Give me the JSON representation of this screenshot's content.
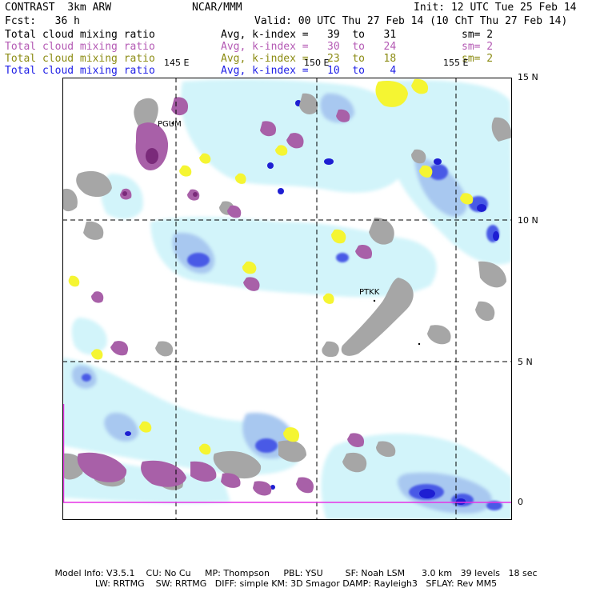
{
  "header": {
    "title": "CONTRAST  3km ARW",
    "source": "NCAR/MMM",
    "init": "Init: 12 UTC Tue 25 Feb 14",
    "fcst": "Fcst:   36 h",
    "valid": "Valid: 00 UTC Thu 27 Feb 14 (10 ChT Thu 27 Feb 14)"
  },
  "legend": [
    {
      "field": "Total cloud mixing ratio",
      "range": "Avg, k-index =   39  to   31",
      "sm": "sm= 2",
      "color": "#000000"
    },
    {
      "field": "Total cloud mixing ratio",
      "range": "Avg, k-index =   30  to   24",
      "sm": "sm= 2",
      "color": "#b45ab4"
    },
    {
      "field": "Total cloud mixing ratio",
      "range": "Avg, k-index =   23  to   18",
      "sm": "sm= 2",
      "color": "#8c8c14"
    },
    {
      "field": "Total cloud mixing ratio",
      "range": "Avg, k-index =   10  to    4",
      "sm": "",
      "color": "#1e1ee6"
    }
  ],
  "map": {
    "lon_labels": [
      "145 E",
      "150 E",
      "155 E"
    ],
    "lat_labels": [
      "15 N",
      "10 N",
      "5 N",
      "0"
    ],
    "stations": [
      "PGUM",
      "PTKK"
    ],
    "colors": {
      "land": "#a6a6a6",
      "cloud_light": "#d2f4fa",
      "cloud_mid": "#a8c8f0",
      "cloud_dark": "#4a5ae6",
      "cloud_core": "#1e1ed2",
      "mid_level": "#a860a8",
      "mid_level_dark": "#7a2a7a",
      "upper_level": "#f5f532",
      "grid": "#000000",
      "equator": "#e632e6"
    }
  },
  "footer": {
    "line1": "Model Info: V3.5.1    CU: No Cu     MP: Thompson     PBL: YSU        SF: Noah LSM      3.0 km   39 levels   18 sec",
    "line2": "LW: RRTMG    SW: RRTMG   DIFF: simple KM: 3D Smagor DAMP: Rayleigh3   SFLAY: Rev MM5"
  }
}
